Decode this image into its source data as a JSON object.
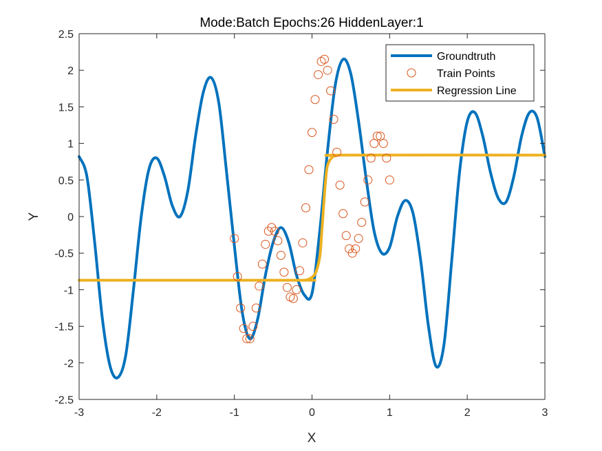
{
  "chart_data": {
    "type": "line",
    "title": "Mode:Batch Epochs:26 HiddenLayer:1",
    "xlabel": "X",
    "ylabel": "Y",
    "xlim": [
      -3,
      3
    ],
    "ylim": [
      -2.5,
      2.5
    ],
    "xticks": [
      -3,
      -2,
      -1,
      0,
      1,
      2,
      3
    ],
    "yticks": [
      -2.5,
      -2,
      -1.5,
      -1,
      -0.5,
      0,
      0.5,
      1,
      1.5,
      2,
      2.5
    ],
    "xtick_labels": [
      "-3",
      "-2",
      "-1",
      "0",
      "1",
      "2",
      "3"
    ],
    "ytick_labels": [
      "-2.5",
      "-2",
      "-1.5",
      "-1",
      "-0.5",
      "0",
      "0.5",
      "1",
      "1.5",
      "2",
      "2.5"
    ],
    "grid": false,
    "legend_position": "top-right",
    "series": [
      {
        "name": "Groundtruth",
        "style": "line",
        "color": "#0072BD",
        "x": [
          -3.0,
          -2.9,
          -2.8,
          -2.7,
          -2.6,
          -2.5,
          -2.4,
          -2.3,
          -2.2,
          -2.1,
          -2.0,
          -1.9,
          -1.8,
          -1.7,
          -1.6,
          -1.5,
          -1.4,
          -1.3,
          -1.2,
          -1.1,
          -1.0,
          -0.9,
          -0.8,
          -0.7,
          -0.6,
          -0.5,
          -0.4,
          -0.3,
          -0.2,
          -0.1,
          0.0,
          0.1,
          0.2,
          0.3,
          0.4,
          0.5,
          0.6,
          0.7,
          0.8,
          0.9,
          1.0,
          1.1,
          1.2,
          1.3,
          1.4,
          1.5,
          1.6,
          1.7,
          1.8,
          1.9,
          2.0,
          2.1,
          2.2,
          2.3,
          2.4,
          2.5,
          2.6,
          2.7,
          2.8,
          2.9,
          3.0
        ],
        "y": [
          0.82,
          0.55,
          -0.35,
          -1.4,
          -2.05,
          -2.2,
          -1.9,
          -1.0,
          0.0,
          0.65,
          0.8,
          0.55,
          0.15,
          0.0,
          0.35,
          1.1,
          1.7,
          1.9,
          1.55,
          0.6,
          -0.4,
          -1.3,
          -1.67,
          -1.4,
          -0.8,
          -0.35,
          -0.15,
          -0.35,
          -0.8,
          -1.07,
          -1.05,
          -0.2,
          0.9,
          1.8,
          2.15,
          1.95,
          1.3,
          0.5,
          -0.2,
          -0.5,
          -0.42,
          0.0,
          0.22,
          0.05,
          -0.6,
          -1.5,
          -2.05,
          -1.75,
          -0.6,
          0.6,
          1.3,
          1.42,
          1.1,
          0.6,
          0.25,
          0.2,
          0.55,
          1.1,
          1.42,
          1.35,
          0.82
        ]
      },
      {
        "name": "Train Points",
        "style": "markers",
        "color": "#D95319",
        "x": [
          -1.0,
          -0.96,
          -0.92,
          -0.88,
          -0.84,
          -0.8,
          -0.76,
          -0.72,
          -0.68,
          -0.64,
          -0.6,
          -0.56,
          -0.52,
          -0.48,
          -0.44,
          -0.4,
          -0.36,
          -0.32,
          -0.28,
          -0.24,
          -0.2,
          -0.16,
          -0.12,
          -0.08,
          -0.04,
          0.0,
          0.04,
          0.08,
          0.12,
          0.16,
          0.2,
          0.24,
          0.28,
          0.32,
          0.36,
          0.4,
          0.44,
          0.48,
          0.52,
          0.56,
          0.6,
          0.64,
          0.68,
          0.72,
          0.76,
          0.8,
          0.84,
          0.88,
          0.92,
          0.96,
          1.0
        ],
        "y": [
          -0.3,
          -0.82,
          -1.25,
          -1.53,
          -1.67,
          -1.67,
          -1.5,
          -1.25,
          -0.95,
          -0.65,
          -0.38,
          -0.2,
          -0.15,
          -0.2,
          -0.33,
          -0.53,
          -0.76,
          -0.97,
          -1.1,
          -1.12,
          -1.0,
          -0.74,
          -0.36,
          0.12,
          0.64,
          1.15,
          1.6,
          1.94,
          2.12,
          2.15,
          2.0,
          1.72,
          1.33,
          0.88,
          0.43,
          0.04,
          -0.26,
          -0.44,
          -0.5,
          -0.44,
          -0.3,
          -0.08,
          0.2,
          0.5,
          0.8,
          1.0,
          1.1,
          1.1,
          1.0,
          0.8,
          0.5
        ]
      },
      {
        "name": "Regression Line",
        "style": "line",
        "color": "#EDB120",
        "x": [
          -3.0,
          -0.2,
          -0.1,
          -0.05,
          0.0,
          0.05,
          0.1,
          0.12,
          0.14,
          0.16,
          0.18,
          0.2,
          0.25,
          0.3,
          0.4,
          3.0
        ],
        "y": [
          -0.87,
          -0.87,
          -0.87,
          -0.86,
          -0.83,
          -0.76,
          -0.55,
          -0.3,
          0.0,
          0.3,
          0.55,
          0.7,
          0.8,
          0.83,
          0.84,
          0.84
        ]
      }
    ]
  }
}
